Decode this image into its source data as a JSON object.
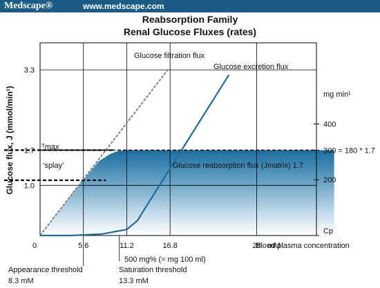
{
  "banner": {
    "logo": "Medscape®",
    "url": "www.medscape.com"
  },
  "chart_data": {
    "type": "line",
    "title": "Reabsorption Family",
    "subtitle": "Renal Glucose Fluxes (rates)",
    "ylabel_left": "Glucose flux, J (mmol/min¹)",
    "ylabel_right_unit": "mg min¹",
    "xlabel": "Blood plasma concentration",
    "x_unit": "mM",
    "x_ticks": [
      "0",
      "5.6",
      "11.2",
      "16.8",
      "28"
    ],
    "y_ticks_left": [
      "1.0",
      "1.7",
      "3.3"
    ],
    "y_ticks_right": [
      "200",
      "300 = 180 * 1.7",
      "400"
    ],
    "cp_label": "Cp",
    "xlim": [
      0,
      38
    ],
    "ylim": [
      0,
      4
    ],
    "series": [
      {
        "name": "Glucose filtration flux",
        "style": "dashed",
        "color": "#808080",
        "points": [
          [
            0,
            0
          ],
          [
            16.5,
            3.3
          ]
        ]
      },
      {
        "name": "Glucose excretion flux",
        "style": "solid",
        "color": "#1a6d9e",
        "points": [
          [
            0,
            0
          ],
          [
            4,
            0
          ],
          [
            8,
            0.03
          ],
          [
            11.2,
            0.12
          ],
          [
            12.6,
            0.3
          ],
          [
            13.4,
            0.5
          ],
          [
            24.4,
            3.2
          ]
        ]
      },
      {
        "name": "Glucose reabsorption flux (Jmatrix) 1.7",
        "style": "filled",
        "color": "#1a6d9e",
        "points": [
          [
            0,
            0
          ],
          [
            5,
            1.0
          ],
          [
            7.6,
            1.48
          ],
          [
            9,
            1.62
          ],
          [
            10,
            1.68
          ],
          [
            11.2,
            1.7
          ],
          [
            38,
            1.7
          ]
        ]
      }
    ],
    "annotations": {
      "tmax": "ᵀmax",
      "splay": "‘splay’",
      "mg_conversion": "500 mg% (= mg 100 ml)",
      "appearance_threshold": [
        "Appearance threshold",
        "8.3 mM"
      ],
      "saturation_threshold": [
        "Saturation threshold",
        "13.3 mM"
      ]
    },
    "grid": true
  },
  "colors": {
    "banner": "#1a5c86",
    "curve": "#1a6d9e"
  }
}
